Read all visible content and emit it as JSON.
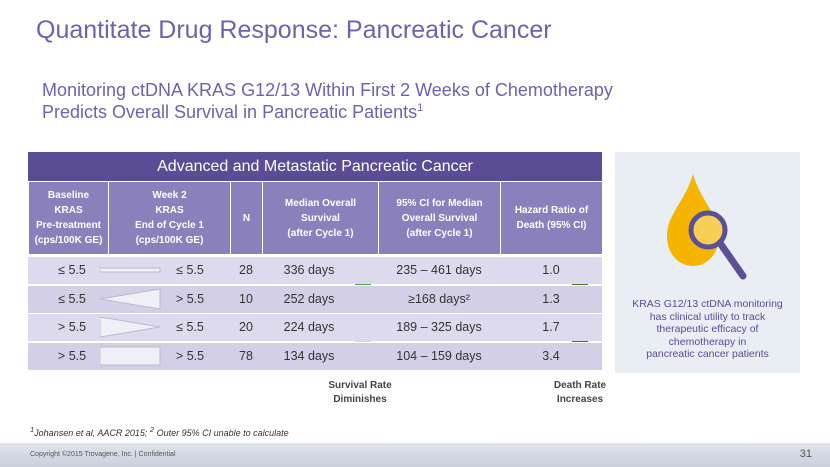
{
  "title": "Quantitate Drug Response: Pancreatic Cancer",
  "subtitle": {
    "line1": "Monitoring ctDNA KRAS G12/13 Within First 2 Weeks of Chemotherapy",
    "line2": "Predicts Overall Survival in Pancreatic Patients",
    "sup": "1"
  },
  "table": {
    "banner": "Advanced and Metastatic Pancreatic Cancer",
    "headers": [
      [
        "Baseline",
        "KRAS",
        "Pre-treatment",
        "(cps/100K GE)"
      ],
      [
        "Week 2",
        "KRAS",
        "End of Cycle 1",
        "(cps/100K GE)"
      ],
      [
        "N"
      ],
      [
        "Median  Overall",
        "Survival",
        "(after Cycle 1)"
      ],
      [
        "95% CI for Median",
        "Overall Survival",
        "(after Cycle 1)"
      ],
      [
        "Hazard Ratio of",
        "Death (95% CI)"
      ]
    ],
    "rows": [
      [
        "≤ 5.5",
        "≤ 5.5",
        "28",
        "336 days",
        "235 – 461 days",
        "1.0"
      ],
      [
        "≤ 5.5",
        "> 5.5",
        "10",
        "252 days",
        "≥168 days²",
        "1.3"
      ],
      [
        "> 5.5",
        "≤ 5.5",
        "20",
        "224 days",
        "189 – 325 days",
        "1.7"
      ],
      [
        "> 5.5",
        "> 5.5",
        "78",
        "134 days",
        "104 – 159 days",
        "3.4"
      ]
    ],
    "survival_note": [
      "Survival Rate",
      "Diminishes"
    ],
    "death_note": [
      "Death Rate",
      "Increases"
    ]
  },
  "side_panel": [
    "KRAS G12/13 ctDNA monitoring",
    "has clinical utility to track",
    "therapeutic efficacy of",
    "chemotherapy in",
    "pancreatic cancer patients"
  ],
  "footnote": {
    "sup1": "1",
    "text1": "Johansen et al, AACR 2015; ",
    "sup2": "2",
    "text2": " Outer 95% CI unable  to calculate"
  },
  "footer": {
    "copyright": "Copyright ©2015 Trovagene, Inc. | Confidential",
    "page": "31"
  }
}
